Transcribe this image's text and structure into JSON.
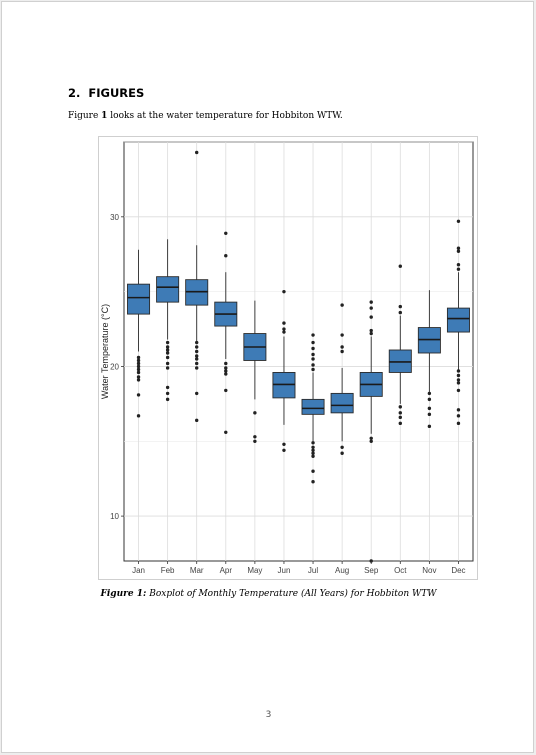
{
  "section": {
    "number": "2.",
    "title": "FIGURES"
  },
  "intro": {
    "prefix": "Figure ",
    "figure_ref": "1",
    "rest": " looks at the water temperature for Hobbiton WTW."
  },
  "caption": {
    "label": "Figure 1:",
    "text": " Boxplot of Monthly Temperature (All Years) for Hobbiton WTW"
  },
  "page_number": "3",
  "colors": {
    "box_fill": "#3e7bb6",
    "box_stroke": "#2b2b2b",
    "grid": "#dcdcdc",
    "outlier": "#222222"
  },
  "chart_data": {
    "type": "boxplot",
    "ylabel": "Water Temperature (°C)",
    "xlabel": "",
    "ylim": [
      7,
      35
    ],
    "yticks": [
      10,
      20,
      30
    ],
    "grid": true,
    "categories": [
      "Jan",
      "Feb",
      "Mar",
      "Apr",
      "May",
      "Jun",
      "Jul",
      "Aug",
      "Sep",
      "Oct",
      "Nov",
      "Dec"
    ],
    "series": [
      {
        "q1": 23.5,
        "median": 24.6,
        "q3": 25.5,
        "whisker_low": 21.0,
        "whisker_high": 27.8,
        "outliers": [
          20.6,
          20.4,
          20.2,
          20.0,
          19.8,
          19.6,
          19.3,
          19.1,
          18.1,
          16.7
        ]
      },
      {
        "q1": 24.3,
        "median": 25.3,
        "q3": 26.0,
        "whisker_low": 21.8,
        "whisker_high": 28.5,
        "outliers": [
          21.6,
          21.3,
          21.1,
          20.9,
          20.6,
          20.2,
          19.9,
          18.6,
          18.2,
          17.8
        ]
      },
      {
        "q1": 24.1,
        "median": 25.0,
        "q3": 25.8,
        "whisker_low": 21.7,
        "whisker_high": 28.1,
        "outliers": [
          34.3,
          21.6,
          21.3,
          21.0,
          20.7,
          20.5,
          20.2,
          19.9,
          18.2,
          16.4
        ]
      },
      {
        "q1": 22.7,
        "median": 23.5,
        "q3": 24.3,
        "whisker_low": 20.5,
        "whisker_high": 26.3,
        "outliers": [
          28.9,
          27.4,
          20.2,
          19.9,
          19.7,
          19.5,
          18.4,
          15.6
        ]
      },
      {
        "q1": 20.4,
        "median": 21.3,
        "q3": 22.2,
        "whisker_low": 17.8,
        "whisker_high": 24.4,
        "outliers": [
          16.9,
          15.3,
          15.0
        ]
      },
      {
        "q1": 17.9,
        "median": 18.8,
        "q3": 19.6,
        "whisker_low": 16.1,
        "whisker_high": 22.0,
        "outliers": [
          25.0,
          22.9,
          22.5,
          22.3,
          14.8,
          14.4
        ]
      },
      {
        "q1": 16.8,
        "median": 17.2,
        "q3": 17.8,
        "whisker_low": 15.0,
        "whisker_high": 19.6,
        "outliers": [
          22.1,
          21.6,
          21.2,
          20.8,
          20.5,
          20.1,
          19.8,
          14.9,
          14.6,
          14.4,
          14.2,
          14.0,
          13.0,
          12.3
        ]
      },
      {
        "q1": 16.9,
        "median": 17.4,
        "q3": 18.2,
        "whisker_low": 15.0,
        "whisker_high": 19.9,
        "outliers": [
          24.1,
          22.1,
          21.3,
          21.0,
          14.6,
          14.2
        ]
      },
      {
        "q1": 18.0,
        "median": 18.8,
        "q3": 19.6,
        "whisker_low": 15.5,
        "whisker_high": 22.0,
        "outliers": [
          24.3,
          23.9,
          23.3,
          22.4,
          22.2,
          15.2,
          15.0,
          7.0
        ]
      },
      {
        "q1": 19.6,
        "median": 20.3,
        "q3": 21.1,
        "whisker_low": 17.5,
        "whisker_high": 23.4,
        "outliers": [
          26.7,
          24.0,
          23.6,
          17.3,
          16.9,
          16.6,
          16.2
        ]
      },
      {
        "q1": 20.9,
        "median": 21.8,
        "q3": 22.6,
        "whisker_low": 18.3,
        "whisker_high": 25.1,
        "outliers": [
          18.2,
          17.8,
          17.2,
          16.8,
          16.0
        ]
      },
      {
        "q1": 22.3,
        "median": 23.2,
        "q3": 23.9,
        "whisker_low": 19.8,
        "whisker_high": 26.3,
        "outliers": [
          29.7,
          27.9,
          27.7,
          26.8,
          26.5,
          19.7,
          19.4,
          19.1,
          18.9,
          18.4,
          17.1,
          16.7,
          16.2
        ]
      }
    ]
  }
}
